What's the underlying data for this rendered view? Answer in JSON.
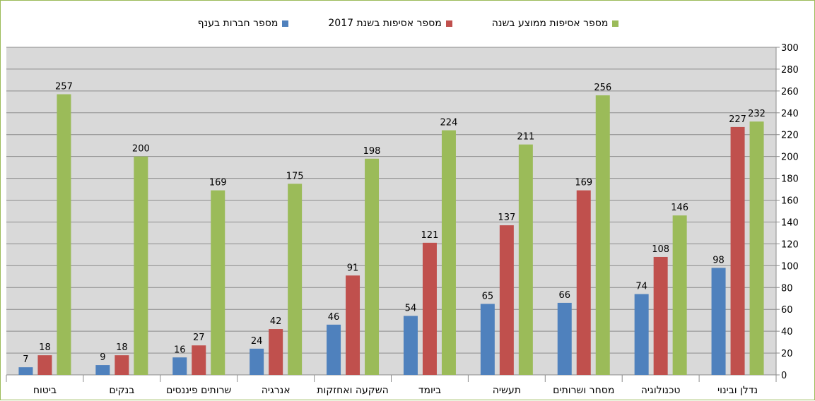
{
  "chart_data": {
    "type": "bar",
    "categories": [
      "נדלן ובינוי",
      "טכנולוגיה",
      "מסחר ושרותים",
      "תעשיה",
      "ביומד",
      "השקעה ואחזקות",
      "אנרגיה",
      "שרותים פיננסים",
      "בנקים",
      "ביטוח"
    ],
    "series": [
      {
        "name": "מספר אסיפות ממוצע בשנה",
        "color": "#9bbb59",
        "values": [
          232,
          146,
          256,
          211,
          224,
          198,
          175,
          169,
          200,
          257
        ]
      },
      {
        "name": "מספר אסיפות בשנת 2017",
        "color": "#c0504d",
        "values": [
          227,
          108,
          169,
          137,
          121,
          91,
          42,
          27,
          18,
          18
        ]
      },
      {
        "name": "מספר חברות בענף",
        "color": "#4f81bd",
        "values": [
          98,
          74,
          66,
          65,
          54,
          46,
          24,
          16,
          9,
          7
        ]
      }
    ],
    "yticks": [
      0,
      20,
      40,
      60,
      80,
      100,
      120,
      140,
      160,
      180,
      200,
      220,
      240,
      260,
      280,
      300
    ],
    "ylim": [
      0,
      300
    ],
    "y_axis_side": "right",
    "grid": true,
    "legend_position": "top",
    "plot_background": "#d9d9d9"
  }
}
